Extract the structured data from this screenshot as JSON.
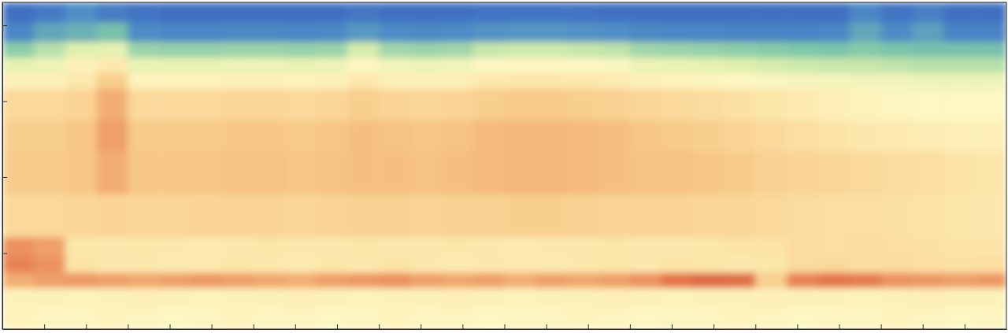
{
  "chart_data": {
    "type": "heatmap",
    "log": "y",
    "grid": false,
    "tick_labels": false,
    "xlim": [
      0,
      24
    ],
    "xticks": [
      1,
      2,
      3,
      4,
      5,
      6,
      7,
      8,
      9,
      10,
      11,
      12,
      13,
      14,
      15,
      16,
      17,
      18,
      19,
      20,
      21,
      22,
      23
    ],
    "ylim": [
      1,
      20000
    ],
    "yticks": [
      10,
      100,
      1000,
      10000
    ],
    "zlim": [
      0,
      100
    ],
    "x": [
      0,
      0.75,
      1.5,
      2.25,
      3,
      3.75,
      4.5,
      5.25,
      6,
      6.75,
      7.5,
      8.25,
      9,
      9.75,
      10.5,
      11.25,
      12,
      12.75,
      13.5,
      14.25,
      15,
      15.75,
      16.5,
      17.25,
      18,
      18.75,
      19.5,
      20.25,
      21,
      21.75,
      22.5,
      23.25,
      24
    ],
    "y": [
      1,
      1.9,
      3.5,
      5.6,
      9.1,
      16.4,
      60,
      222,
      570,
      1480,
      2370,
      3800,
      6100,
      11000,
      20000
    ],
    "cells": [
      [
        57,
        56,
        56,
        57,
        56,
        55,
        56,
        57,
        56,
        56,
        55,
        56,
        57,
        56,
        56,
        55,
        56,
        56,
        57,
        56,
        55,
        56,
        56,
        57,
        56,
        55,
        56,
        56,
        57,
        56,
        55,
        56
      ],
      [
        58,
        58,
        57,
        58,
        59,
        58,
        57,
        58,
        58,
        59,
        58,
        57,
        58,
        58,
        59,
        58,
        57,
        58,
        58,
        59,
        58,
        57,
        58,
        58,
        59,
        58,
        58,
        57,
        58,
        59,
        58,
        58
      ],
      [
        80,
        82,
        83,
        82,
        81,
        82,
        83,
        82,
        81,
        80,
        82,
        83,
        84,
        82,
        81,
        82,
        80,
        82,
        81,
        82,
        84,
        88,
        90,
        89,
        72,
        86,
        88,
        87,
        84,
        83,
        82,
        83
      ],
      [
        86,
        84,
        64,
        62,
        62,
        61,
        62,
        63,
        62,
        61,
        63,
        62,
        64,
        62,
        61,
        62,
        62,
        61,
        62,
        63,
        62,
        64,
        63,
        62,
        63,
        67,
        68,
        66,
        67,
        66,
        65,
        66
      ],
      [
        84,
        82,
        63,
        62,
        63,
        62,
        61,
        62,
        63,
        62,
        62,
        63,
        62,
        62,
        63,
        62,
        61,
        62,
        62,
        63,
        62,
        62,
        63,
        64,
        64,
        67,
        66,
        67,
        66,
        65,
        64,
        64
      ],
      [
        68,
        68,
        69,
        70,
        69,
        69,
        70,
        70,
        70,
        69,
        70,
        71,
        71,
        70,
        71,
        71,
        72,
        72,
        71,
        70,
        70,
        70,
        69,
        69,
        68,
        67,
        66,
        66,
        65,
        64,
        63,
        62
      ],
      [
        73,
        73,
        74,
        80,
        74,
        74,
        74,
        75,
        75,
        74,
        75,
        76,
        76,
        75,
        76,
        77,
        78,
        78,
        77,
        76,
        75,
        75,
        74,
        73,
        71,
        70,
        69,
        68,
        67,
        66,
        64,
        63
      ],
      [
        72,
        72,
        74,
        82,
        73,
        73,
        73,
        74,
        74,
        73,
        74,
        76,
        75,
        74,
        75,
        77,
        78,
        78,
        77,
        76,
        74,
        73,
        72,
        70,
        68,
        66,
        64,
        62,
        61,
        60,
        59,
        59
      ],
      [
        68,
        68,
        70,
        80,
        68,
        68,
        68,
        69,
        69,
        68,
        69,
        72,
        70,
        69,
        70,
        72,
        73,
        73,
        72,
        71,
        69,
        68,
        67,
        65,
        63,
        61,
        59,
        57,
        56,
        55,
        55,
        55
      ],
      [
        58,
        58,
        62,
        72,
        57,
        57,
        57,
        58,
        58,
        57,
        58,
        62,
        59,
        58,
        59,
        62,
        63,
        63,
        62,
        61,
        58,
        57,
        56,
        55,
        54,
        53,
        52,
        51,
        51,
        50,
        50,
        50
      ],
      [
        48,
        50,
        58,
        62,
        49,
        49,
        49,
        50,
        50,
        49,
        50,
        56,
        51,
        50,
        51,
        55,
        56,
        56,
        55,
        54,
        50,
        49,
        48,
        46,
        44,
        43,
        42,
        42,
        41,
        40,
        40,
        40
      ],
      [
        34,
        40,
        46,
        48,
        36,
        35,
        35,
        36,
        36,
        35,
        36,
        44,
        37,
        36,
        37,
        42,
        43,
        43,
        42,
        41,
        37,
        36,
        35,
        34,
        33,
        32,
        31,
        33,
        31,
        30,
        30,
        30
      ],
      [
        12,
        22,
        25,
        30,
        14,
        12,
        12,
        13,
        13,
        12,
        13,
        18,
        14,
        13,
        14,
        16,
        17,
        17,
        16,
        15,
        13,
        12,
        12,
        11,
        11,
        11,
        12,
        22,
        14,
        20,
        11,
        11
      ],
      [
        5,
        8,
        15,
        9,
        6,
        5,
        5,
        5,
        5,
        5,
        5,
        7,
        5,
        5,
        5,
        6,
        6,
        6,
        6,
        5,
        5,
        5,
        5,
        5,
        5,
        5,
        5,
        12,
        6,
        10,
        5,
        5
      ]
    ]
  }
}
